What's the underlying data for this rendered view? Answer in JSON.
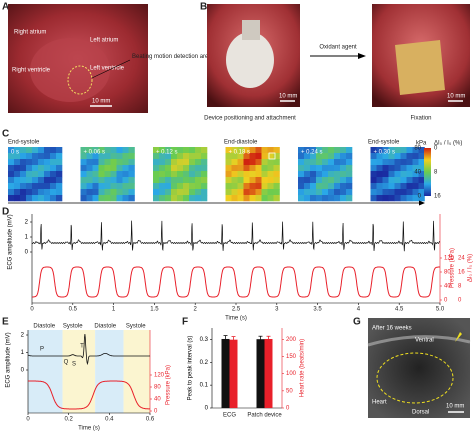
{
  "panels": {
    "a": {
      "label": "A",
      "texts": [
        "Right atrium",
        "Left atrium",
        "Right ventricle",
        "Left ventricle",
        "Beating motion detection area"
      ],
      "scale": "10 mm"
    },
    "b": {
      "label": "B",
      "arrow": "Oxidant agent",
      "caption_left": "Device positioning and attachment",
      "caption_right": "Fixation",
      "scale": "10 mm"
    },
    "c": {
      "label": "C",
      "phases": [
        "End-systole",
        "End-diastole",
        "End-systole"
      ],
      "times": [
        "0 s",
        "+ 0.06 s",
        "+ 0.12 s",
        "+ 0.18 s",
        "+ 0.24 s",
        "+ 0.30 s"
      ],
      "colorbar_unit": "kPa",
      "colorbar_unit2": "ΔI₀ / I₀ (%)",
      "colorbar_ticks": [
        0,
        40,
        80
      ],
      "colorbar_ticks2": [
        16,
        8,
        0
      ]
    },
    "d": {
      "label": "D",
      "xlabel": "Time (s)",
      "ylabel": "ECG amplitude (mV)",
      "y2label": "Pressure (kPa)",
      "y3label": "ΔI₀ / I₀ (%)",
      "xlim": [
        0,
        5
      ],
      "xticks": [
        0,
        0.5,
        1,
        {
          "value": 1.5,
          "label": "1.5"
        },
        2,
        2.5,
        3,
        3.5,
        4,
        4.5,
        {
          "value": 5,
          "label": "5.0"
        }
      ],
      "ylim": [
        0,
        2
      ],
      "yticks": [
        0,
        1,
        2
      ],
      "y2lim": [
        0,
        120
      ],
      "y2ticks": [
        0,
        40,
        80,
        120
      ],
      "y3ticks": [
        0,
        8,
        16,
        24
      ]
    },
    "e": {
      "label": "E",
      "phases": [
        "Diastole",
        "Systole",
        "Diastole",
        "Systole"
      ],
      "waves": [
        "P",
        "Q",
        "S",
        "T"
      ],
      "xlabel": "Time (s)",
      "ylabel": "ECG amplitude (mV)",
      "y2label": "Pressure (kPa)",
      "xlim": [
        0,
        0.6
      ],
      "xticks": [
        0,
        0.2,
        0.4,
        0.6
      ],
      "yticks": [
        0,
        1,
        2
      ],
      "y2lim": [
        0,
        120
      ],
      "y2ticks": [
        0,
        40,
        80,
        120
      ]
    },
    "f": {
      "label": "F",
      "chart_data": {
        "type": "bar",
        "categories": [
          "ECG",
          "Patch device"
        ],
        "ylabel": "Peak to peak interval (s)",
        "y2label": "Heart rate (beats/min)",
        "ylim": [
          0,
          0.35
        ],
        "yticks": [
          0,
          0.1,
          0.2,
          0.3
        ],
        "y2lim": [
          0,
          233
        ],
        "y2ticks": [
          0,
          50,
          100,
          150,
          200
        ],
        "series": [
          {
            "name": "Peak to peak interval",
            "color": "#111111",
            "values": [
              0.302,
              0.301
            ],
            "errors": [
              0.015,
              0.013
            ]
          },
          {
            "name": "Heart rate",
            "color": "#e8202a",
            "axis": "y2",
            "values": [
              199,
              201
            ],
            "errors": [
              9,
              8
            ]
          }
        ]
      }
    },
    "g": {
      "label": "G",
      "texts": [
        "After 16 weeks",
        "Ventral",
        "Heart",
        "Dorsal"
      ],
      "scale": "10 mm"
    }
  }
}
